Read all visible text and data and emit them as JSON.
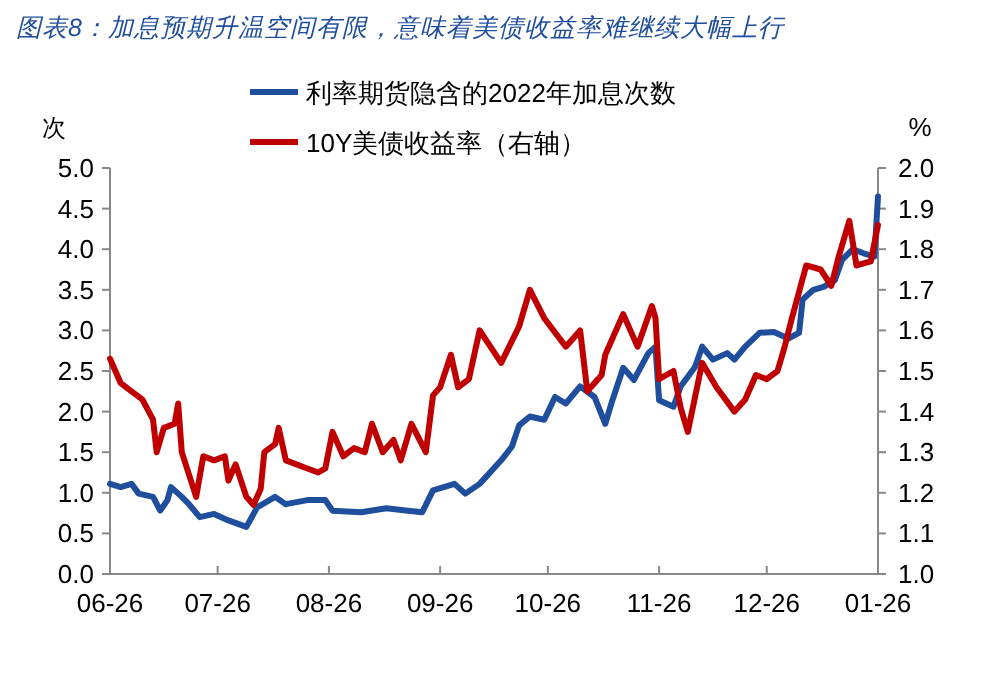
{
  "chart_data": {
    "type": "line",
    "title": "图表8：加息预期升温空间有限，意味着美债收益率难继续大幅上行",
    "ylabel": "次",
    "y2label": "%",
    "x": [
      "2021-06-26",
      "2021-06-29",
      "2021-07-02",
      "2021-07-04",
      "2021-07-08",
      "2021-07-10",
      "2021-07-12",
      "2021-07-13",
      "2021-07-16",
      "2021-07-18",
      "2021-07-21",
      "2021-07-25",
      "2021-07-29",
      "2021-08-03",
      "2021-08-06",
      "2021-08-11",
      "2021-08-14",
      "2021-08-20",
      "2021-08-25",
      "2021-08-27",
      "2021-09-04",
      "2021-09-11",
      "2021-09-17",
      "2021-09-21",
      "2021-09-24",
      "2021-09-30",
      "2021-10-03",
      "2021-10-07",
      "2021-10-13",
      "2021-10-16",
      "2021-10-18",
      "2021-10-21",
      "2021-10-25",
      "2021-10-28",
      "2021-10-31",
      "2021-11-04",
      "2021-11-08",
      "2021-11-11",
      "2021-11-13",
      "2021-11-16",
      "2021-11-19",
      "2021-11-23",
      "2021-11-25",
      "2021-11-26",
      "2021-11-30",
      "2021-12-02",
      "2021-12-06",
      "2021-12-08",
      "2021-12-11",
      "2021-12-15",
      "2021-12-17",
      "2021-12-20",
      "2021-12-24",
      "2021-12-28",
      "2022-01-01",
      "2022-01-04",
      "2022-01-05",
      "2022-01-08",
      "2022-01-11",
      "2022-01-14",
      "2022-01-16",
      "2022-01-19",
      "2022-01-22",
      "2022-01-25",
      "2022-01-26"
    ],
    "xlim": [
      "2021-06-26",
      "2022-01-26"
    ],
    "xticks": [
      {
        "value": "2021-06-26",
        "label": "06-26"
      },
      {
        "value": "2021-07-26",
        "label": "07-26"
      },
      {
        "value": "2021-08-26",
        "label": "08-26"
      },
      {
        "value": "2021-09-26",
        "label": "09-26"
      },
      {
        "value": "2021-10-26",
        "label": "10-26"
      },
      {
        "value": "2021-11-26",
        "label": "11-26"
      },
      {
        "value": "2021-12-26",
        "label": "12-26"
      },
      {
        "value": "2022-01-26",
        "label": "01-26"
      }
    ],
    "ylim": [
      0,
      5
    ],
    "yticks": [
      {
        "value": 0,
        "label": "0.0"
      },
      {
        "value": 0.5,
        "label": "0.5"
      },
      {
        "value": 1,
        "label": "1.0"
      },
      {
        "value": 1.5,
        "label": "1.5"
      },
      {
        "value": 2,
        "label": "2.0"
      },
      {
        "value": 2.5,
        "label": "2.5"
      },
      {
        "value": 3,
        "label": "3.0"
      },
      {
        "value": 3.5,
        "label": "3.5"
      },
      {
        "value": 4,
        "label": "4.0"
      },
      {
        "value": 4.5,
        "label": "4.5"
      },
      {
        "value": 5,
        "label": "5.0"
      }
    ],
    "y2lim": [
      1,
      2
    ],
    "y2ticks": [
      {
        "value": 1,
        "label": "1.0"
      },
      {
        "value": 1.1,
        "label": "1.1"
      },
      {
        "value": 1.2,
        "label": "1.2"
      },
      {
        "value": 1.3,
        "label": "1.3"
      },
      {
        "value": 1.4,
        "label": "1.4"
      },
      {
        "value": 1.5,
        "label": "1.5"
      },
      {
        "value": 1.6,
        "label": "1.6"
      },
      {
        "value": 1.7,
        "label": "1.7"
      },
      {
        "value": 1.8,
        "label": "1.8"
      },
      {
        "value": 1.9,
        "label": "1.9"
      },
      {
        "value": 2,
        "label": "2.0"
      }
    ],
    "legend": "top",
    "grid": false,
    "marker": "none",
    "line_style": "solid",
    "series": [
      {
        "name": "利率期货隐含的2022年加息次数",
        "color": "#1f4e9c",
        "values": [
          1.11,
          1.07,
          1.11,
          0.99,
          0.95,
          0.78,
          0.91,
          1.07,
          0.95,
          0.86,
          0.7,
          0.74,
          0.66,
          0.58,
          0.82,
          0.95,
          0.86,
          0.91,
          0.91,
          0.78,
          0.76,
          0.81,
          0.78,
          0.76,
          1.03,
          1.11,
          0.99,
          1.11,
          1.4,
          1.57,
          1.83,
          1.94,
          1.9,
          2.18,
          2.1,
          2.31,
          2.18,
          1.85,
          2.14,
          2.54,
          2.39,
          2.72,
          2.8,
          2.14,
          2.06,
          2.31,
          2.55,
          2.8,
          2.64,
          2.72,
          2.64,
          2.8,
          2.97,
          2.98,
          2.9,
          2.97,
          3.38,
          3.5,
          3.54,
          3.62,
          3.87,
          4.0,
          3.95,
          3.91,
          4.65
        ]
      },
      {
        "name": "10Y美债收益率（右轴）",
        "color": "#c00000",
        "axis": "y2",
        "x": [
          "2021-06-26",
          "2021-06-29",
          "2021-07-02",
          "2021-07-05",
          "2021-07-08",
          "2021-07-09",
          "2021-07-11",
          "2021-07-14",
          "2021-07-15",
          "2021-07-16",
          "2021-07-20",
          "2021-07-22",
          "2021-07-25",
          "2021-07-28",
          "2021-07-29",
          "2021-07-31",
          "2021-08-03",
          "2021-08-05",
          "2021-08-07",
          "2021-08-08",
          "2021-08-11",
          "2021-08-12",
          "2021-08-14",
          "2021-08-20",
          "2021-08-23",
          "2021-08-25",
          "2021-08-27",
          "2021-08-30",
          "2021-09-02",
          "2021-09-05",
          "2021-09-07",
          "2021-09-10",
          "2021-09-13",
          "2021-09-15",
          "2021-09-18",
          "2021-09-22",
          "2021-09-24",
          "2021-09-26",
          "2021-09-29",
          "2021-10-01",
          "2021-10-04",
          "2021-10-07",
          "2021-10-13",
          "2021-10-18",
          "2021-10-21",
          "2021-10-25",
          "2021-10-31",
          "2021-11-04",
          "2021-11-06",
          "2021-11-10",
          "2021-11-11",
          "2021-11-16",
          "2021-11-20",
          "2021-11-24",
          "2021-11-25",
          "2021-11-26",
          "2021-11-30",
          "2021-12-02",
          "2021-12-04",
          "2021-12-08",
          "2021-12-12",
          "2021-12-17",
          "2021-12-20",
          "2021-12-23",
          "2021-12-26",
          "2021-12-29",
          "2021-12-31",
          "2022-01-02",
          "2022-01-06",
          "2022-01-10",
          "2022-01-13",
          "2022-01-15",
          "2022-01-18",
          "2022-01-20",
          "2022-01-24",
          "2022-01-26"
        ],
        "values": [
          1.53,
          1.47,
          1.45,
          1.43,
          1.38,
          1.3,
          1.36,
          1.37,
          1.42,
          1.3,
          1.19,
          1.29,
          1.28,
          1.29,
          1.23,
          1.27,
          1.19,
          1.17,
          1.21,
          1.3,
          1.32,
          1.36,
          1.28,
          1.26,
          1.25,
          1.26,
          1.35,
          1.29,
          1.31,
          1.3,
          1.37,
          1.3,
          1.33,
          1.28,
          1.37,
          1.3,
          1.44,
          1.46,
          1.54,
          1.46,
          1.48,
          1.6,
          1.52,
          1.61,
          1.7,
          1.63,
          1.56,
          1.6,
          1.45,
          1.49,
          1.54,
          1.64,
          1.56,
          1.66,
          1.63,
          1.48,
          1.5,
          1.41,
          1.35,
          1.52,
          1.46,
          1.4,
          1.43,
          1.49,
          1.48,
          1.5,
          1.56,
          1.63,
          1.76,
          1.75,
          1.71,
          1.78,
          1.87,
          1.76,
          1.77,
          1.86
        ]
      }
    ]
  }
}
